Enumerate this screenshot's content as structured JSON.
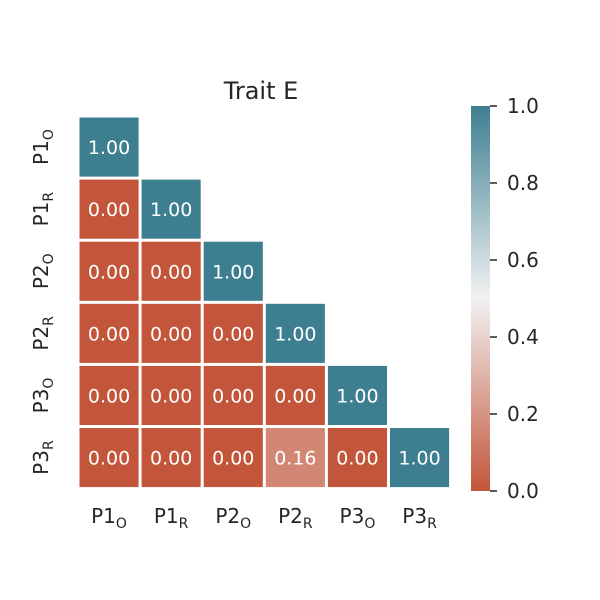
{
  "chart_data": {
    "type": "heatmap",
    "title": "Trait E",
    "labels": [
      {
        "main": "P1",
        "sub": "O"
      },
      {
        "main": "P1",
        "sub": "R"
      },
      {
        "main": "P2",
        "sub": "O"
      },
      {
        "main": "P2",
        "sub": "R"
      },
      {
        "main": "P3",
        "sub": "O"
      },
      {
        "main": "P3",
        "sub": "R"
      }
    ],
    "matrix": [
      [
        1.0
      ],
      [
        0.0,
        1.0
      ],
      [
        0.0,
        0.0,
        1.0
      ],
      [
        0.0,
        0.0,
        0.0,
        1.0
      ],
      [
        0.0,
        0.0,
        0.0,
        0.0,
        1.0
      ],
      [
        0.0,
        0.0,
        0.0,
        0.16,
        0.0,
        1.0
      ]
    ],
    "cell_text": [
      [
        "1.00"
      ],
      [
        "0.00",
        "1.00"
      ],
      [
        "0.00",
        "0.00",
        "1.00"
      ],
      [
        "0.00",
        "0.00",
        "0.00",
        "1.00"
      ],
      [
        "0.00",
        "0.00",
        "0.00",
        "0.00",
        "1.00"
      ],
      [
        "0.00",
        "0.00",
        "0.00",
        "0.16",
        "0.00",
        "1.00"
      ]
    ],
    "colorbar": {
      "range": [
        0.0,
        1.0
      ],
      "ticks": [
        "0.0",
        "0.2",
        "0.4",
        "0.6",
        "0.8",
        "1.0"
      ],
      "colors": {
        "low": "#c3553a",
        "mid": "#f2f2f2",
        "high": "#3d7f91"
      }
    },
    "mask": "upper-triangle",
    "grid": false
  }
}
